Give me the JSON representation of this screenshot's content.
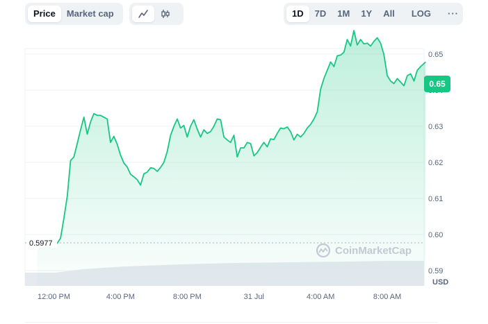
{
  "toolbar": {
    "type_tabs": [
      "Price",
      "Market cap"
    ],
    "active_type": "Price",
    "style_icons": [
      "line-chart-icon",
      "candlestick-icon"
    ],
    "active_style": "line-chart-icon",
    "ranges": [
      "1D",
      "7D",
      "1M",
      "1Y",
      "All"
    ],
    "active_range": "1D",
    "scale": "LOG",
    "more": "···"
  },
  "current_price_label": "0.65",
  "open_price_label": "0.5977",
  "watermark": "CoinMarketCap",
  "currency": "USD",
  "colors": {
    "line": "#16c784",
    "fill_top": "#16c784",
    "grid": "#eff2f5",
    "volume": "#e6e9ef",
    "axis_text": "#58667e",
    "reference_line": "#a6b0c3"
  },
  "chart_data": {
    "type": "area",
    "title": "",
    "xlabel": "",
    "ylabel": "",
    "x_ticks": [
      "12:00 PM",
      "4:00 PM",
      "8:00 PM",
      "31 Jul",
      "4:00 AM",
      "8:00 AM"
    ],
    "y_ticks": [
      "0.59",
      "0.60",
      "0.61",
      "0.62",
      "0.63",
      "0.64",
      "0.65"
    ],
    "ylim": [
      0.5858,
      0.6515
    ],
    "reference_value": 0.5977,
    "grid": true,
    "x_hours": [
      -1.0,
      -0.8,
      -0.6,
      -0.4,
      -0.2,
      0,
      0.2,
      0.4,
      0.6,
      0.8,
      1.0,
      1.2,
      1.4,
      1.6,
      1.8,
      2.0,
      2.2,
      2.4,
      2.6,
      2.8,
      3.0,
      3.2,
      3.4,
      3.6,
      3.8,
      4.0,
      4.2,
      4.4,
      4.6,
      4.8,
      5.0,
      5.2,
      5.4,
      5.6,
      5.8,
      6.0,
      6.2,
      6.4,
      6.6,
      6.8,
      7.0,
      7.2,
      7.4,
      7.6,
      7.8,
      8.0,
      8.2,
      8.4,
      8.6,
      8.8,
      9.0,
      9.2,
      9.4,
      9.6,
      9.8,
      10.0,
      10.2,
      10.4,
      10.6,
      10.8,
      11.0,
      11.2,
      11.4,
      11.6,
      11.8,
      12.0,
      12.2,
      12.4,
      12.6,
      12.8,
      13.0,
      13.2,
      13.4,
      13.6,
      13.8,
      14.0,
      14.2,
      14.4,
      14.6,
      14.8,
      15.0,
      15.2,
      15.4,
      15.6,
      15.8,
      16.0,
      16.2,
      16.4,
      16.6,
      16.8,
      17.0,
      17.2,
      17.4,
      17.6,
      17.8,
      18.0,
      18.2,
      18.4,
      18.6,
      18.8,
      19.0,
      19.2,
      19.4,
      19.6,
      19.8,
      20.0,
      20.2,
      20.4,
      20.6,
      20.8,
      21.0,
      21.2,
      21.4,
      21.6,
      21.8,
      22.0,
      22.3
    ],
    "values": [
      0.5977,
      0.5985,
      0.5982,
      0.5979,
      0.5978,
      0.5976,
      0.5976,
      0.599,
      0.6045,
      0.6105,
      0.6205,
      0.6215,
      0.6252,
      0.629,
      0.6325,
      0.6278,
      0.6312,
      0.6335,
      0.633,
      0.633,
      0.6325,
      0.632,
      0.6255,
      0.6272,
      0.625,
      0.622,
      0.6198,
      0.6187,
      0.6167,
      0.616,
      0.6152,
      0.6137,
      0.6168,
      0.6173,
      0.6185,
      0.6183,
      0.6175,
      0.6186,
      0.62,
      0.623,
      0.6275,
      0.63,
      0.632,
      0.6295,
      0.6302,
      0.627,
      0.63,
      0.6318,
      0.6292,
      0.627,
      0.629,
      0.628,
      0.6285,
      0.63,
      0.632,
      0.6318,
      0.627,
      0.6262,
      0.6255,
      0.6275,
      0.6215,
      0.624,
      0.624,
      0.6255,
      0.6252,
      0.6218,
      0.6227,
      0.6242,
      0.6255,
      0.6243,
      0.6265,
      0.6263,
      0.628,
      0.6295,
      0.6293,
      0.6298,
      0.6285,
      0.6262,
      0.6278,
      0.627,
      0.628,
      0.6295,
      0.6305,
      0.632,
      0.634,
      0.6402,
      0.6432,
      0.6455,
      0.6478,
      0.6465,
      0.6495,
      0.6497,
      0.6505,
      0.654,
      0.6522,
      0.6565,
      0.6525,
      0.654,
      0.6528,
      0.653,
      0.6522,
      0.6535,
      0.6545,
      0.653,
      0.6498,
      0.644,
      0.6425,
      0.6418,
      0.6432,
      0.6422,
      0.6412,
      0.644,
      0.6445,
      0.6425,
      0.6455,
      0.6465,
      0.6478
    ]
  }
}
